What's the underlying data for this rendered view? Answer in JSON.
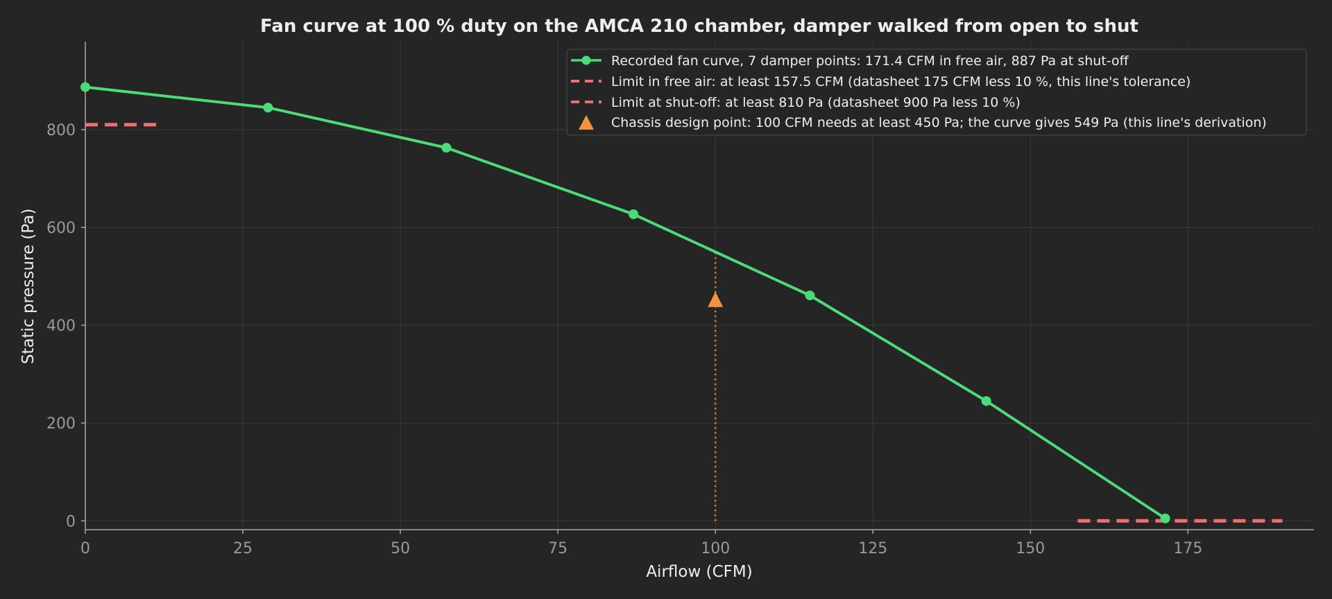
{
  "chart_data": {
    "type": "line",
    "title": "Fan curve at 100 % duty on the AMCA 210 chamber, damper walked from open to shut",
    "xlabel": "Airflow (CFM)",
    "ylabel": "Static pressure (Pa)",
    "xlim": [
      0,
      195
    ],
    "ylim": [
      -18,
      980
    ],
    "xticks": [
      0,
      25,
      50,
      75,
      100,
      125,
      150,
      175
    ],
    "yticks": [
      0,
      200,
      400,
      600,
      800
    ],
    "grid": true,
    "legend_position": "top-right",
    "series": [
      {
        "name": "Recorded fan curve, 7 damper points: 171.4 CFM in free air, 887 Pa at shut-off",
        "color": "#4ddb7a",
        "style": "solid-with-markers",
        "x": [
          0,
          29,
          57.3,
          87,
          115,
          143,
          171.4
        ],
        "y": [
          887,
          845,
          763,
          627,
          461,
          245,
          5
        ]
      },
      {
        "name": "Limit in free air: at least 157.5 CFM (datasheet 175 CFM less 10 %, this line's tolerance)",
        "color": "#f07070",
        "style": "dashed",
        "x": [
          157.5,
          190
        ],
        "y": [
          0,
          0
        ]
      },
      {
        "name": "Limit at shut-off: at least 810 Pa (datasheet 900 Pa less 10 %)",
        "color": "#f07070",
        "style": "dashed",
        "x": [
          0,
          12
        ],
        "y": [
          810,
          810
        ]
      },
      {
        "name": "Chassis design point: 100 CFM needs at least 450 Pa; the curve gives 549 Pa (this line's derivation)",
        "color": "#f5923e",
        "style": "triangle-marker",
        "x": [
          100
        ],
        "y": [
          450
        ],
        "guide_x": 100,
        "guide_y_top": 549
      }
    ]
  }
}
